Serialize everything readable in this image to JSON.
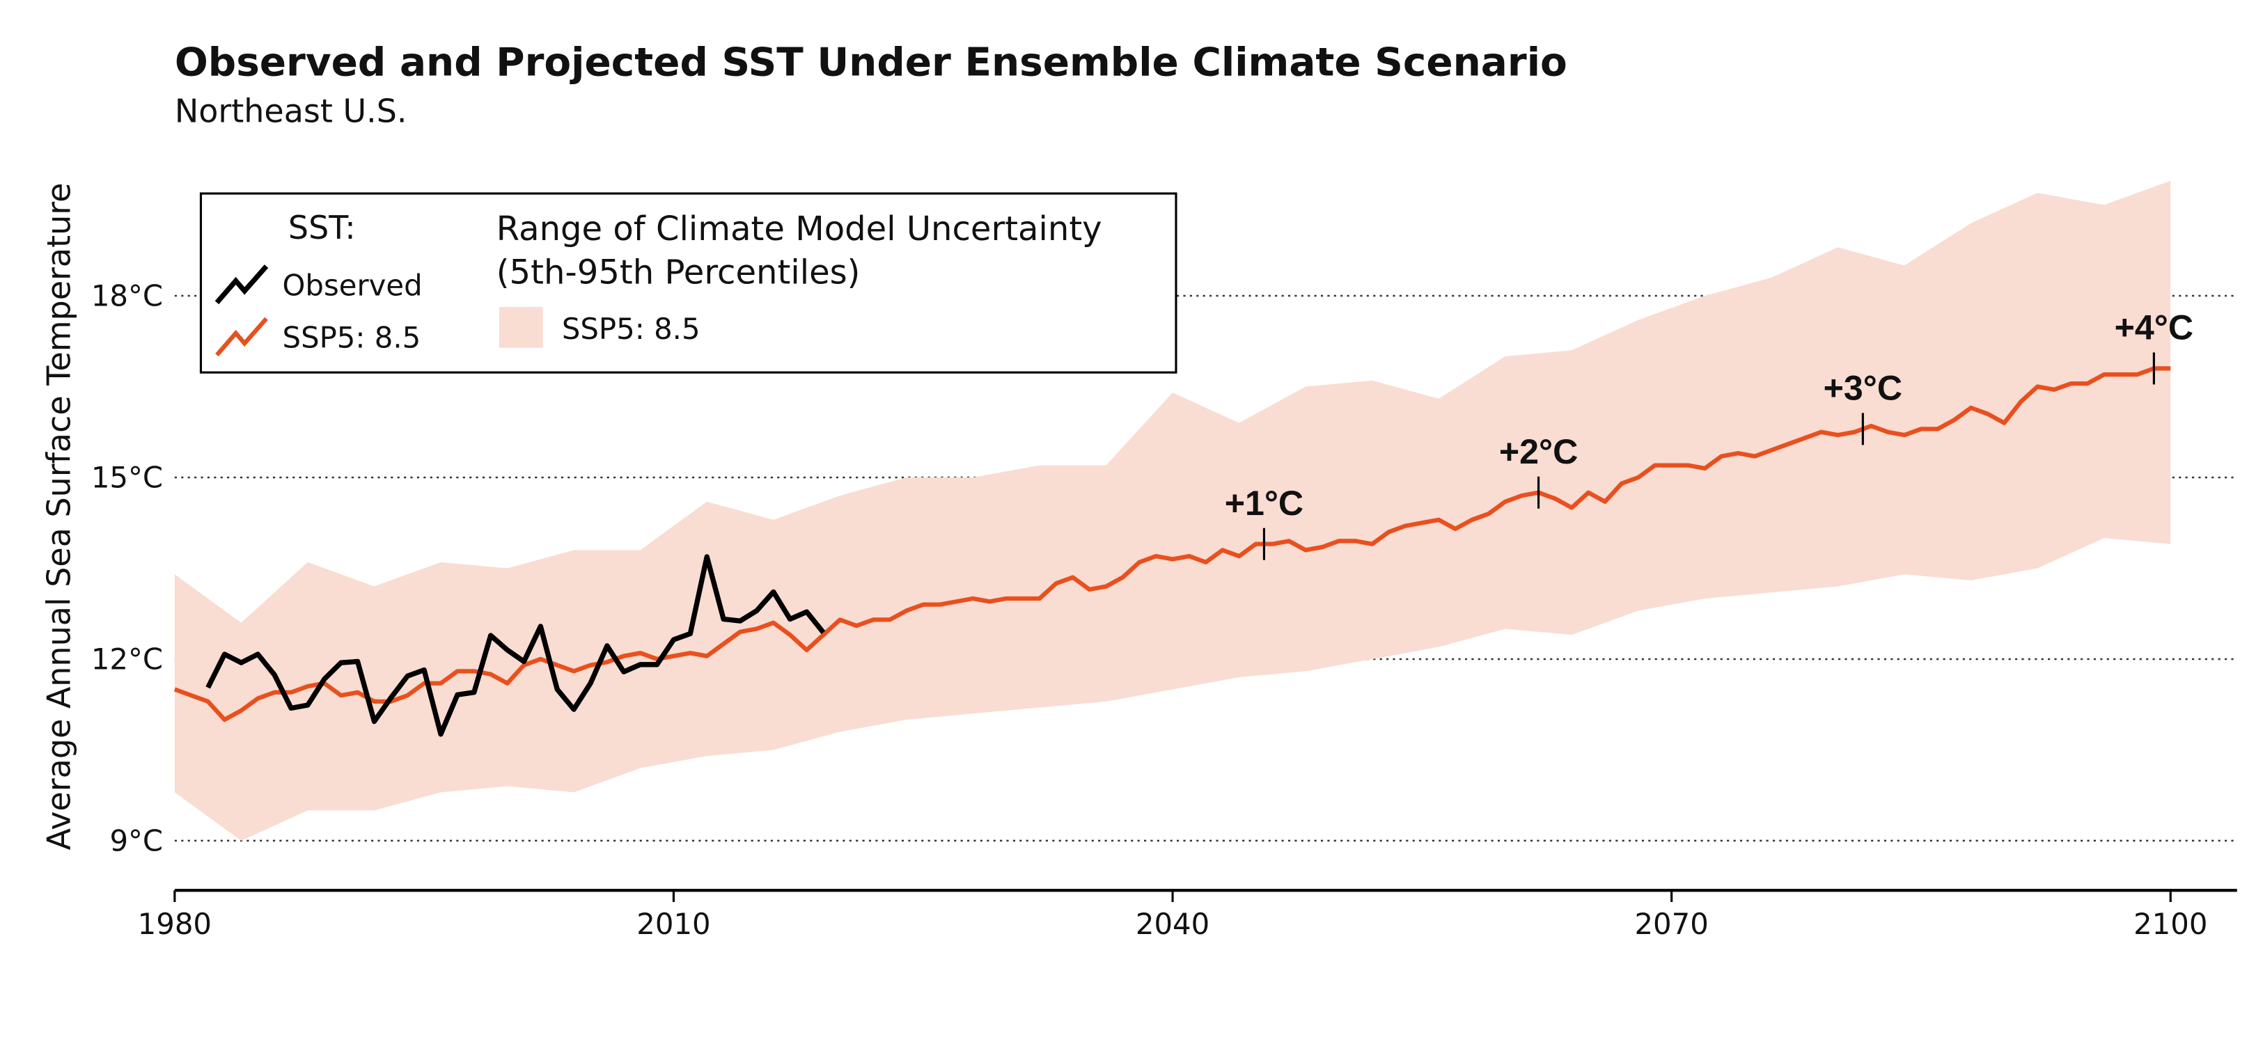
{
  "chart_data": {
    "type": "line",
    "title": "Observed and Projected SST Under Ensemble Climate Scenario",
    "subtitle": "Northeast U.S.",
    "y_label": "Average Annual Sea Surface Temperature",
    "xlim": [
      1980,
      2104
    ],
    "ylim": [
      8.18,
      20.3
    ],
    "xticks": [
      1980,
      2010,
      2040,
      2070,
      2100
    ],
    "yticks": [
      {
        "value": 9,
        "label": "9°C"
      },
      {
        "value": 12,
        "label": "12°C"
      },
      {
        "value": 15,
        "label": "15°C"
      },
      {
        "value": 18,
        "label": "18°C"
      }
    ],
    "grid": true,
    "legend": {
      "title": "SST:",
      "band_title": [
        "Range of Climate Model Uncertainty",
        "(5th-95th Percentiles)"
      ]
    },
    "band": {
      "name": "SSP5: 8.5",
      "color": "#f9dcd2",
      "x": [
        1980,
        1984,
        1988,
        1992,
        1996,
        2000,
        2004,
        2008,
        2012,
        2016,
        2020,
        2024,
        2028,
        2032,
        2036,
        2040,
        2044,
        2048,
        2052,
        2056,
        2060,
        2064,
        2068,
        2072,
        2076,
        2080,
        2084,
        2088,
        2092,
        2096,
        2100
      ],
      "upper": [
        13.4,
        12.6,
        13.6,
        13.2,
        13.6,
        13.5,
        13.8,
        13.8,
        14.6,
        14.3,
        14.7,
        15.0,
        15.0,
        15.2,
        15.2,
        16.4,
        15.9,
        16.5,
        16.6,
        16.3,
        17.0,
        17.1,
        17.6,
        18.0,
        18.3,
        18.8,
        18.5,
        19.2,
        19.7,
        19.5,
        19.9
      ],
      "lower": [
        9.8,
        9.0,
        9.5,
        9.5,
        9.8,
        9.9,
        9.8,
        10.2,
        10.4,
        10.5,
        10.8,
        11.0,
        11.1,
        11.2,
        11.3,
        11.5,
        11.7,
        11.8,
        12.0,
        12.2,
        12.5,
        12.4,
        12.8,
        13.0,
        13.1,
        13.2,
        13.4,
        13.3,
        13.5,
        14.0,
        13.9
      ]
    },
    "series": [
      {
        "name": "SSP5: 8.5",
        "color": "#e8501e",
        "x": [
          1980,
          1981,
          1982,
          1983,
          1984,
          1985,
          1986,
          1987,
          1988,
          1989,
          1990,
          1991,
          1992,
          1993,
          1994,
          1995,
          1996,
          1997,
          1998,
          1999,
          2000,
          2001,
          2002,
          2003,
          2004,
          2005,
          2006,
          2007,
          2008,
          2009,
          2010,
          2011,
          2012,
          2013,
          2014,
          2015,
          2016,
          2017,
          2018,
          2019,
          2020,
          2021,
          2022,
          2023,
          2024,
          2025,
          2026,
          2027,
          2028,
          2029,
          2030,
          2031,
          2032,
          2033,
          2034,
          2035,
          2036,
          2037,
          2038,
          2039,
          2040,
          2041,
          2042,
          2043,
          2044,
          2045,
          2046,
          2047,
          2048,
          2049,
          2050,
          2051,
          2052,
          2053,
          2054,
          2055,
          2056,
          2057,
          2058,
          2059,
          2060,
          2061,
          2062,
          2063,
          2064,
          2065,
          2066,
          2067,
          2068,
          2069,
          2070,
          2071,
          2072,
          2073,
          2074,
          2075,
          2076,
          2077,
          2078,
          2079,
          2080,
          2081,
          2082,
          2083,
          2084,
          2085,
          2086,
          2087,
          2088,
          2089,
          2090,
          2091,
          2092,
          2093,
          2094,
          2095,
          2096,
          2097,
          2098,
          2099,
          2100
        ],
        "values": [
          11.5,
          11.4,
          11.3,
          11.0,
          11.15,
          11.35,
          11.45,
          11.45,
          11.55,
          11.6,
          11.4,
          11.45,
          11.3,
          11.3,
          11.4,
          11.6,
          11.6,
          11.8,
          11.8,
          11.75,
          11.6,
          11.9,
          12.0,
          11.9,
          11.8,
          11.9,
          11.95,
          12.05,
          12.1,
          12.0,
          12.05,
          12.1,
          12.05,
          12.25,
          12.45,
          12.5,
          12.6,
          12.4,
          12.15,
          12.4,
          12.65,
          12.55,
          12.65,
          12.65,
          12.8,
          12.9,
          12.9,
          12.95,
          13.0,
          12.95,
          13.0,
          13.0,
          13.0,
          13.25,
          13.35,
          13.15,
          13.2,
          13.35,
          13.6,
          13.7,
          13.65,
          13.7,
          13.6,
          13.8,
          13.7,
          13.9,
          13.9,
          13.95,
          13.8,
          13.85,
          13.95,
          13.95,
          13.9,
          14.1,
          14.2,
          14.25,
          14.3,
          14.15,
          14.3,
          14.4,
          14.6,
          14.7,
          14.75,
          14.65,
          14.5,
          14.75,
          14.6,
          14.9,
          15.0,
          15.2,
          15.2,
          15.2,
          15.15,
          15.35,
          15.4,
          15.35,
          15.45,
          15.55,
          15.65,
          15.75,
          15.7,
          15.75,
          15.85,
          15.75,
          15.7,
          15.8,
          15.8,
          15.95,
          16.15,
          16.05,
          15.9,
          16.25,
          16.5,
          16.45,
          16.55,
          16.55,
          16.7,
          16.7,
          16.7,
          16.8,
          16.8
        ]
      },
      {
        "name": "Observed",
        "color": "#000000",
        "x": [
          1982,
          1983,
          1984,
          1985,
          1986,
          1987,
          1988,
          1989,
          1990,
          1991,
          1992,
          1993,
          1994,
          1995,
          1996,
          1997,
          1998,
          1999,
          2000,
          2001,
          2002,
          2003,
          2004,
          2005,
          2006,
          2007,
          2008,
          2009,
          2010,
          2011,
          2012,
          2013,
          2014,
          2015,
          2016,
          2017,
          2018,
          2019
        ],
        "values": [
          11.53,
          12.08,
          11.94,
          12.08,
          11.74,
          11.19,
          11.24,
          11.67,
          11.94,
          11.96,
          10.97,
          11.36,
          11.72,
          11.82,
          10.76,
          11.41,
          11.45,
          12.39,
          12.15,
          11.96,
          12.54,
          11.5,
          11.17,
          11.6,
          12.22,
          11.79,
          11.91,
          11.91,
          12.32,
          12.42,
          13.69,
          12.66,
          12.63,
          12.8,
          13.11,
          12.66,
          12.78,
          12.44
        ]
      }
    ],
    "annotations": [
      {
        "text": "+1°C",
        "x": 2045.5,
        "y": 13.9
      },
      {
        "text": "+2°C",
        "x": 2062,
        "y": 14.75
      },
      {
        "text": "+3°C",
        "x": 2081.5,
        "y": 15.8
      },
      {
        "text": "+4°C",
        "x": 2099,
        "y": 16.8
      }
    ]
  }
}
